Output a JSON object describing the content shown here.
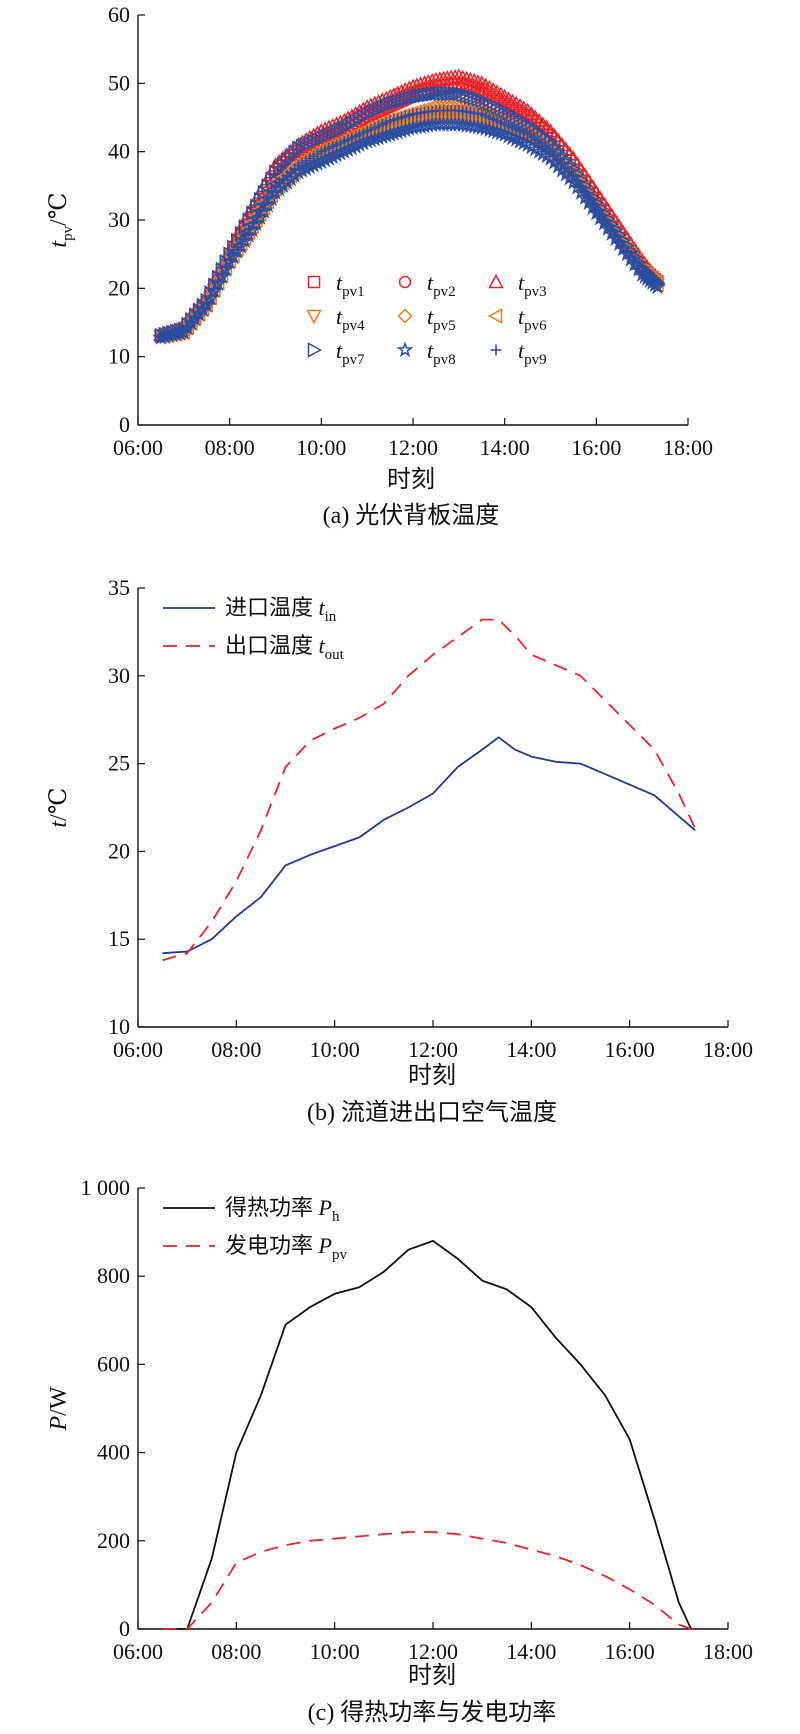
{
  "chart_data": [
    {
      "type": "scatter",
      "caption": "(a) 光伏背板温度",
      "xlabel": "时刻",
      "ylabel": {
        "main": "t",
        "sub": "pv",
        "unit": "/℃"
      },
      "ylim": [
        0,
        60
      ],
      "yticks": [
        "0",
        "10",
        "20",
        "30",
        "40",
        "50",
        "60"
      ],
      "xlim": [
        "06:00",
        "18:00"
      ],
      "xticks": [
        "06:00",
        "08:00",
        "10:00",
        "12:00",
        "14:00",
        "16:00",
        "18:00"
      ],
      "legend_position": "center",
      "x": [
        "06:30",
        "07:00",
        "07:30",
        "08:00",
        "08:30",
        "09:00",
        "09:30",
        "10:00",
        "10:30",
        "11:00",
        "11:30",
        "12:00",
        "12:30",
        "13:00",
        "13:30",
        "14:00",
        "14:30",
        "15:00",
        "15:30",
        "16:00",
        "16:30",
        "17:00",
        "17:20"
      ],
      "series": [
        {
          "name": "pv1",
          "marker": "square",
          "color": "#e8262a",
          "values": [
            13,
            14,
            18,
            25,
            31,
            37,
            40,
            42,
            43.5,
            45.5,
            47,
            48.5,
            49.5,
            50,
            49,
            47,
            45,
            42,
            38,
            33,
            28,
            23,
            21
          ]
        },
        {
          "name": "pv2",
          "marker": "circle",
          "color": "#e8262a",
          "values": [
            13,
            13.8,
            18,
            24.5,
            30.5,
            36,
            39.5,
            41.5,
            43,
            45,
            46.5,
            48,
            49,
            49.5,
            48,
            46,
            44,
            41,
            37,
            32.5,
            27.5,
            23,
            20.8
          ]
        },
        {
          "name": "pv3",
          "marker": "triangle-up",
          "color": "#e8262a",
          "values": [
            13.2,
            14.2,
            18.5,
            25.5,
            32,
            38,
            41,
            43,
            44.5,
            46.5,
            48,
            49.5,
            50.5,
            51,
            50,
            48,
            46,
            43,
            39,
            34,
            29,
            24,
            21.2
          ]
        },
        {
          "name": "pv4",
          "marker": "triangle-down",
          "color": "#f07a1c",
          "values": [
            13,
            13.6,
            17.5,
            24,
            29,
            34.5,
            37.5,
            39.5,
            41,
            42.5,
            43.5,
            44.5,
            45.5,
            46,
            45.5,
            44,
            42.5,
            40,
            36.5,
            31.5,
            27,
            22.5,
            20.6
          ]
        },
        {
          "name": "pv5",
          "marker": "diamond",
          "color": "#f07a1c",
          "values": [
            13,
            13.7,
            17.8,
            24.3,
            29.5,
            35,
            38,
            40,
            41.5,
            43,
            44.5,
            45.5,
            46.5,
            47,
            46,
            44.5,
            43,
            40.5,
            37,
            32,
            27.2,
            22.7,
            20.7
          ]
        },
        {
          "name": "pv6",
          "marker": "triangle-left",
          "color": "#f07a1c",
          "values": [
            13,
            13.6,
            17.6,
            24,
            29,
            34.5,
            37.5,
            39.5,
            41,
            42.5,
            43.5,
            44.5,
            45.2,
            45.5,
            45,
            43.8,
            42.2,
            39.8,
            36.3,
            31.5,
            27,
            22.5,
            20.5
          ]
        },
        {
          "name": "pv7",
          "marker": "triangle-right",
          "color": "#2b4ea2",
          "values": [
            13.1,
            14,
            18.2,
            25,
            31,
            37,
            40.5,
            42,
            43.5,
            45.5,
            47,
            48,
            48.5,
            48.5,
            47.5,
            46,
            44,
            41.5,
            37.5,
            32.5,
            27.8,
            23,
            20.8
          ]
        },
        {
          "name": "pv8",
          "marker": "star",
          "color": "#2b4ea2",
          "values": [
            12.8,
            13.5,
            17.5,
            23.8,
            28.5,
            34,
            37,
            38.5,
            40,
            41.5,
            42.5,
            43.5,
            44,
            44,
            43.5,
            42.5,
            41,
            39,
            35.5,
            31,
            26.5,
            22,
            20.2
          ]
        },
        {
          "name": "pv9",
          "marker": "plus",
          "color": "#2b4ea2",
          "values": [
            13,
            13.7,
            17.8,
            24.3,
            29.5,
            35,
            38,
            40,
            41.5,
            43,
            44.5,
            45.5,
            46,
            46,
            45.5,
            44,
            42.5,
            40,
            36.5,
            31.5,
            27,
            22.5,
            20.5
          ]
        }
      ]
    },
    {
      "type": "line",
      "caption": "(b) 流道进出口空气温度",
      "xlabel": "时刻",
      "ylabel": {
        "main": "t",
        "unit": "/℃"
      },
      "ylim": [
        10,
        35
      ],
      "yticks": [
        "10",
        "15",
        "20",
        "25",
        "30",
        "35"
      ],
      "xlim": [
        "06:00",
        "18:00"
      ],
      "xticks": [
        "06:00",
        "08:00",
        "10:00",
        "12:00",
        "14:00",
        "16:00",
        "18:00"
      ],
      "legend_position": "top-left",
      "x": [
        "06:30",
        "07:00",
        "07:30",
        "08:00",
        "08:30",
        "09:00",
        "09:30",
        "10:00",
        "10:30",
        "11:00",
        "11:30",
        "12:00",
        "12:30",
        "13:00",
        "13:20",
        "13:40",
        "14:00",
        "14:30",
        "15:00",
        "15:30",
        "16:00",
        "16:30",
        "17:00",
        "17:20"
      ],
      "series": [
        {
          "name": "进口温度",
          "name_var": "t",
          "name_sub": "in",
          "style": "solid",
          "color": "#1f3a93",
          "values": [
            14.2,
            14.3,
            15,
            16.3,
            17.4,
            19.2,
            19.8,
            20.3,
            20.8,
            21.8,
            22.5,
            23.3,
            24.8,
            25.8,
            26.5,
            25.8,
            25.4,
            25.1,
            25,
            24.4,
            23.8,
            23.2,
            22,
            21.2
          ]
        },
        {
          "name": "出口温度",
          "name_var": "t",
          "name_sub": "out",
          "style": "dashed",
          "color": "#e8262a",
          "values": [
            13.8,
            14.2,
            16,
            18.3,
            21.2,
            24.8,
            26.3,
            27,
            27.6,
            28.4,
            30,
            31.2,
            32.2,
            33.2,
            33.2,
            32.3,
            31.2,
            30.6,
            30,
            28.6,
            27.2,
            25.8,
            23.3,
            21.3
          ]
        }
      ]
    },
    {
      "type": "line",
      "caption": "(c) 得热功率与发电功率",
      "xlabel": "时刻",
      "ylabel": {
        "main": "P",
        "unit": "/W"
      },
      "ylim": [
        0,
        1000
      ],
      "yticks": [
        "0",
        "200",
        "400",
        "600",
        "800",
        "1 000"
      ],
      "xlim": [
        "06:00",
        "18:00"
      ],
      "xticks": [
        "06:00",
        "08:00",
        "10:00",
        "12:00",
        "14:00",
        "16:00",
        "18:00"
      ],
      "legend_position": "top-left",
      "x": [
        "06:30",
        "07:00",
        "07:30",
        "08:00",
        "08:30",
        "09:00",
        "09:30",
        "10:00",
        "10:30",
        "11:00",
        "11:30",
        "12:00",
        "12:30",
        "13:00",
        "13:30",
        "14:00",
        "14:30",
        "15:00",
        "15:30",
        "16:00",
        "16:30",
        "17:00",
        "17:15"
      ],
      "series": [
        {
          "name": "得热功率",
          "name_var": "P",
          "name_sub": "h",
          "style": "solid",
          "color": "#111111",
          "values": [
            0,
            0,
            160,
            400,
            530,
            690,
            730,
            760,
            775,
            810,
            860,
            880,
            840,
            790,
            770,
            730,
            660,
            600,
            530,
            430,
            250,
            60,
            0
          ]
        },
        {
          "name": "发电功率",
          "name_var": "P",
          "name_sub": "pv",
          "style": "dashed",
          "color": "#e8262a",
          "values": [
            0,
            0,
            60,
            150,
            175,
            190,
            200,
            205,
            210,
            215,
            220,
            220,
            215,
            205,
            195,
            180,
            165,
            145,
            120,
            90,
            55,
            10,
            0
          ]
        }
      ]
    }
  ]
}
